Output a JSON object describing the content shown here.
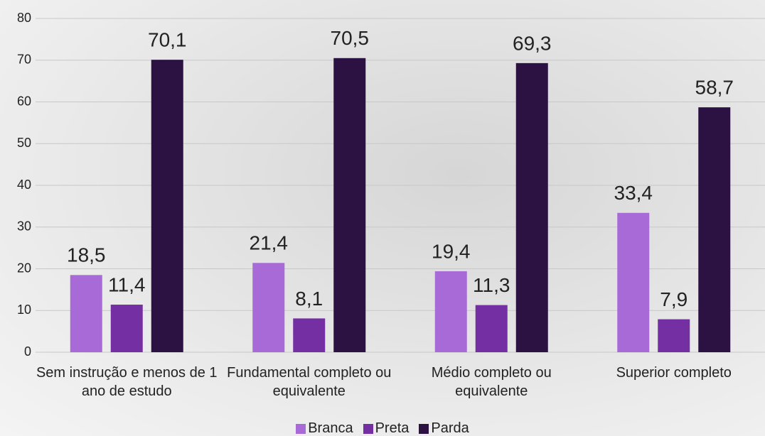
{
  "chart_data": {
    "type": "bar",
    "categories": [
      "Sem instrução e menos de 1 ano de estudo",
      "Fundamental completo ou equivalente",
      "Médio completo ou equivalente",
      "Superior completo"
    ],
    "series": [
      {
        "name": "Branca",
        "color": "#a86ad6",
        "values": [
          18.5,
          21.4,
          19.4,
          33.4
        ],
        "value_labels": [
          "18,5",
          "21,4",
          "19,4",
          "33,4"
        ]
      },
      {
        "name": "Preta",
        "color": "#7430a2",
        "values": [
          11.4,
          8.1,
          11.3,
          7.9
        ],
        "value_labels": [
          "11,4",
          "8,1",
          "11,3",
          "7,9"
        ]
      },
      {
        "name": "Parda",
        "color": "#2b1242",
        "values": [
          70.1,
          70.5,
          69.3,
          58.7
        ],
        "value_labels": [
          "70,1",
          "70,5",
          "69,3",
          "58,7"
        ]
      }
    ],
    "ylim": [
      0,
      80
    ],
    "yticks": [
      0,
      10,
      20,
      30,
      40,
      50,
      60,
      70,
      80
    ],
    "grid": true,
    "legend": "bottom"
  }
}
